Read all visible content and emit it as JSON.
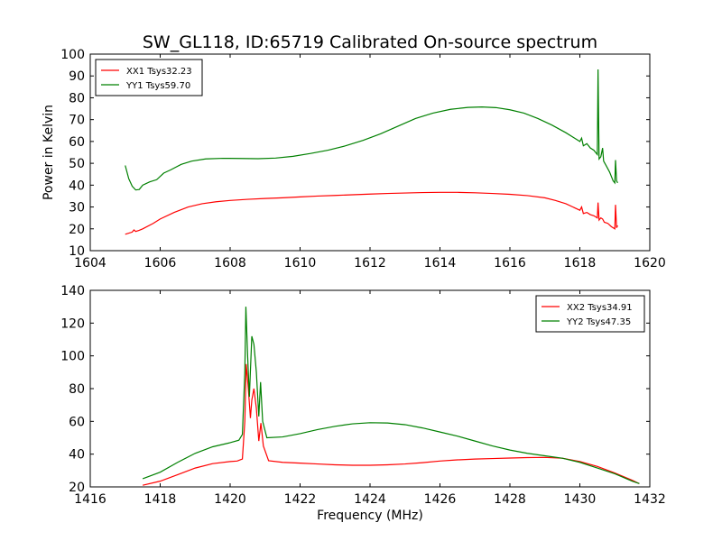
{
  "title": "SW_GL118, ID:65719 Calibrated On-source spectrum",
  "chart_data": [
    {
      "type": "line",
      "ylabel": "Power in Kelvin",
      "xlabel": "",
      "xlim": [
        1604,
        1620
      ],
      "ylim": [
        10,
        100
      ],
      "xticks": [
        1604,
        1606,
        1608,
        1610,
        1612,
        1614,
        1616,
        1618,
        1620
      ],
      "yticks": [
        10,
        20,
        30,
        40,
        50,
        60,
        70,
        80,
        90,
        100
      ],
      "grid": false,
      "legend_position": "top-left",
      "series": [
        {
          "name": "XX1 Tsys32.23",
          "color": "#ff0000",
          "points": [
            [
              1605.0,
              17.5
            ],
            [
              1605.2,
              18.5
            ],
            [
              1605.25,
              19.5
            ],
            [
              1605.3,
              18.8
            ],
            [
              1605.4,
              19.3
            ],
            [
              1605.5,
              20.0
            ],
            [
              1605.8,
              22.5
            ],
            [
              1606.0,
              24.5
            ],
            [
              1606.4,
              27.5
            ],
            [
              1606.8,
              30.0
            ],
            [
              1607.2,
              31.5
            ],
            [
              1607.6,
              32.4
            ],
            [
              1608.0,
              33.0
            ],
            [
              1608.5,
              33.5
            ],
            [
              1609.0,
              33.9
            ],
            [
              1609.5,
              34.2
            ],
            [
              1610.0,
              34.6
            ],
            [
              1610.5,
              35.0
            ],
            [
              1611.0,
              35.3
            ],
            [
              1611.5,
              35.6
            ],
            [
              1612.0,
              35.9
            ],
            [
              1612.5,
              36.2
            ],
            [
              1613.0,
              36.4
            ],
            [
              1613.5,
              36.6
            ],
            [
              1614.0,
              36.7
            ],
            [
              1614.5,
              36.7
            ],
            [
              1615.0,
              36.5
            ],
            [
              1615.5,
              36.2
            ],
            [
              1616.0,
              35.8
            ],
            [
              1616.5,
              35.2
            ],
            [
              1617.0,
              34.2
            ],
            [
              1617.3,
              33.0
            ],
            [
              1617.6,
              31.5
            ],
            [
              1618.0,
              28.5
            ],
            [
              1618.05,
              30.0
            ],
            [
              1618.1,
              27.0
            ],
            [
              1618.2,
              27.5
            ],
            [
              1618.3,
              26.5
            ],
            [
              1618.4,
              26.0
            ],
            [
              1618.5,
              25.0
            ],
            [
              1618.52,
              32.0
            ],
            [
              1618.55,
              24.0
            ],
            [
              1618.6,
              25.0
            ],
            [
              1618.65,
              24.5
            ],
            [
              1618.7,
              23.0
            ],
            [
              1618.8,
              22.5
            ],
            [
              1618.9,
              21.0
            ],
            [
              1619.0,
              20.0
            ],
            [
              1619.02,
              31.0
            ],
            [
              1619.05,
              20.5
            ],
            [
              1619.08,
              21.5
            ]
          ]
        },
        {
          "name": "YY1 Tsys59.70",
          "color": "#008000",
          "points": [
            [
              1605.0,
              49.0
            ],
            [
              1605.1,
              43.0
            ],
            [
              1605.2,
              39.5
            ],
            [
              1605.3,
              37.8
            ],
            [
              1605.4,
              38.0
            ],
            [
              1605.5,
              40.0
            ],
            [
              1605.7,
              41.5
            ],
            [
              1605.9,
              42.5
            ],
            [
              1606.1,
              45.5
            ],
            [
              1606.3,
              47.0
            ],
            [
              1606.6,
              49.5
            ],
            [
              1606.9,
              51.0
            ],
            [
              1607.3,
              52.0
            ],
            [
              1607.8,
              52.3
            ],
            [
              1608.3,
              52.2
            ],
            [
              1608.8,
              52.1
            ],
            [
              1609.3,
              52.4
            ],
            [
              1609.8,
              53.2
            ],
            [
              1610.3,
              54.5
            ],
            [
              1610.8,
              56.0
            ],
            [
              1611.3,
              58.0
            ],
            [
              1611.8,
              60.5
            ],
            [
              1612.3,
              63.5
            ],
            [
              1612.8,
              67.0
            ],
            [
              1613.3,
              70.5
            ],
            [
              1613.8,
              73.0
            ],
            [
              1614.3,
              74.7
            ],
            [
              1614.8,
              75.6
            ],
            [
              1615.2,
              75.8
            ],
            [
              1615.6,
              75.5
            ],
            [
              1616.0,
              74.5
            ],
            [
              1616.4,
              73.0
            ],
            [
              1616.8,
              70.5
            ],
            [
              1617.2,
              67.5
            ],
            [
              1617.6,
              64.0
            ],
            [
              1618.0,
              60.0
            ],
            [
              1618.05,
              61.5
            ],
            [
              1618.1,
              58.0
            ],
            [
              1618.2,
              59.0
            ],
            [
              1618.3,
              57.0
            ],
            [
              1618.4,
              56.0
            ],
            [
              1618.5,
              54.0
            ],
            [
              1618.52,
              93.0
            ],
            [
              1618.55,
              52.0
            ],
            [
              1618.6,
              53.0
            ],
            [
              1618.65,
              57.0
            ],
            [
              1618.68,
              51.0
            ],
            [
              1618.75,
              49.0
            ],
            [
              1618.85,
              46.0
            ],
            [
              1618.95,
              42.0
            ],
            [
              1619.0,
              41.0
            ],
            [
              1619.02,
              51.5
            ],
            [
              1619.05,
              42.0
            ],
            [
              1619.08,
              41.0
            ]
          ]
        }
      ]
    },
    {
      "type": "line",
      "xlabel": "Frequency (MHz)",
      "ylabel": "",
      "xlim": [
        1416,
        1432
      ],
      "ylim": [
        20,
        140
      ],
      "xticks": [
        1416,
        1418,
        1420,
        1422,
        1424,
        1426,
        1428,
        1430,
        1432
      ],
      "yticks": [
        20,
        40,
        60,
        80,
        100,
        120,
        140
      ],
      "grid": false,
      "legend_position": "top-right",
      "series": [
        {
          "name": "XX2 Tsys34.91",
          "color": "#ff0000",
          "points": [
            [
              1417.5,
              21.0
            ],
            [
              1418.0,
              23.5
            ],
            [
              1418.5,
              27.5
            ],
            [
              1419.0,
              31.5
            ],
            [
              1419.5,
              34.2
            ],
            [
              1420.0,
              35.5
            ],
            [
              1420.2,
              35.8
            ],
            [
              1420.35,
              37.0
            ],
            [
              1420.42,
              60.0
            ],
            [
              1420.46,
              95.0
            ],
            [
              1420.52,
              80.0
            ],
            [
              1420.58,
              62.0
            ],
            [
              1420.62,
              73.0
            ],
            [
              1420.68,
              80.0
            ],
            [
              1420.75,
              68.0
            ],
            [
              1420.82,
              48.0
            ],
            [
              1420.88,
              59.0
            ],
            [
              1420.95,
              45.0
            ],
            [
              1421.1,
              36.0
            ],
            [
              1421.5,
              35.0
            ],
            [
              1422.0,
              34.5
            ],
            [
              1422.5,
              34.0
            ],
            [
              1423.0,
              33.5
            ],
            [
              1423.5,
              33.2
            ],
            [
              1424.0,
              33.2
            ],
            [
              1424.5,
              33.5
            ],
            [
              1425.0,
              34.0
            ],
            [
              1425.5,
              34.8
            ],
            [
              1426.0,
              35.8
            ],
            [
              1426.5,
              36.5
            ],
            [
              1427.0,
              37.0
            ],
            [
              1427.5,
              37.3
            ],
            [
              1428.0,
              37.6
            ],
            [
              1428.5,
              37.9
            ],
            [
              1429.0,
              38.0
            ],
            [
              1429.5,
              37.5
            ],
            [
              1430.0,
              35.5
            ],
            [
              1430.5,
              32.5
            ],
            [
              1431.0,
              28.5
            ],
            [
              1431.5,
              24.0
            ],
            [
              1431.7,
              22.0
            ]
          ]
        },
        {
          "name": "YY2 Tsys47.35",
          "color": "#008000",
          "points": [
            [
              1417.5,
              25.0
            ],
            [
              1418.0,
              29.0
            ],
            [
              1418.5,
              35.0
            ],
            [
              1419.0,
              40.5
            ],
            [
              1419.5,
              44.5
            ],
            [
              1420.0,
              47.0
            ],
            [
              1420.25,
              48.5
            ],
            [
              1420.35,
              52.0
            ],
            [
              1420.42,
              90.0
            ],
            [
              1420.45,
              130.0
            ],
            [
              1420.5,
              100.0
            ],
            [
              1420.55,
              75.0
            ],
            [
              1420.62,
              112.0
            ],
            [
              1420.68,
              107.0
            ],
            [
              1420.75,
              90.0
            ],
            [
              1420.82,
              63.0
            ],
            [
              1420.87,
              84.0
            ],
            [
              1420.93,
              60.0
            ],
            [
              1421.05,
              50.0
            ],
            [
              1421.5,
              50.5
            ],
            [
              1422.0,
              52.5
            ],
            [
              1422.5,
              55.0
            ],
            [
              1423.0,
              57.0
            ],
            [
              1423.5,
              58.5
            ],
            [
              1424.0,
              59.2
            ],
            [
              1424.5,
              59.0
            ],
            [
              1425.0,
              58.0
            ],
            [
              1425.5,
              56.0
            ],
            [
              1426.0,
              53.5
            ],
            [
              1426.5,
              51.0
            ],
            [
              1427.0,
              48.0
            ],
            [
              1427.5,
              45.0
            ],
            [
              1428.0,
              42.5
            ],
            [
              1428.5,
              40.5
            ],
            [
              1429.0,
              39.0
            ],
            [
              1429.5,
              37.5
            ],
            [
              1430.0,
              35.0
            ],
            [
              1430.5,
              31.5
            ],
            [
              1431.0,
              28.0
            ],
            [
              1431.5,
              23.5
            ],
            [
              1431.7,
              22.0
            ]
          ]
        }
      ]
    }
  ]
}
